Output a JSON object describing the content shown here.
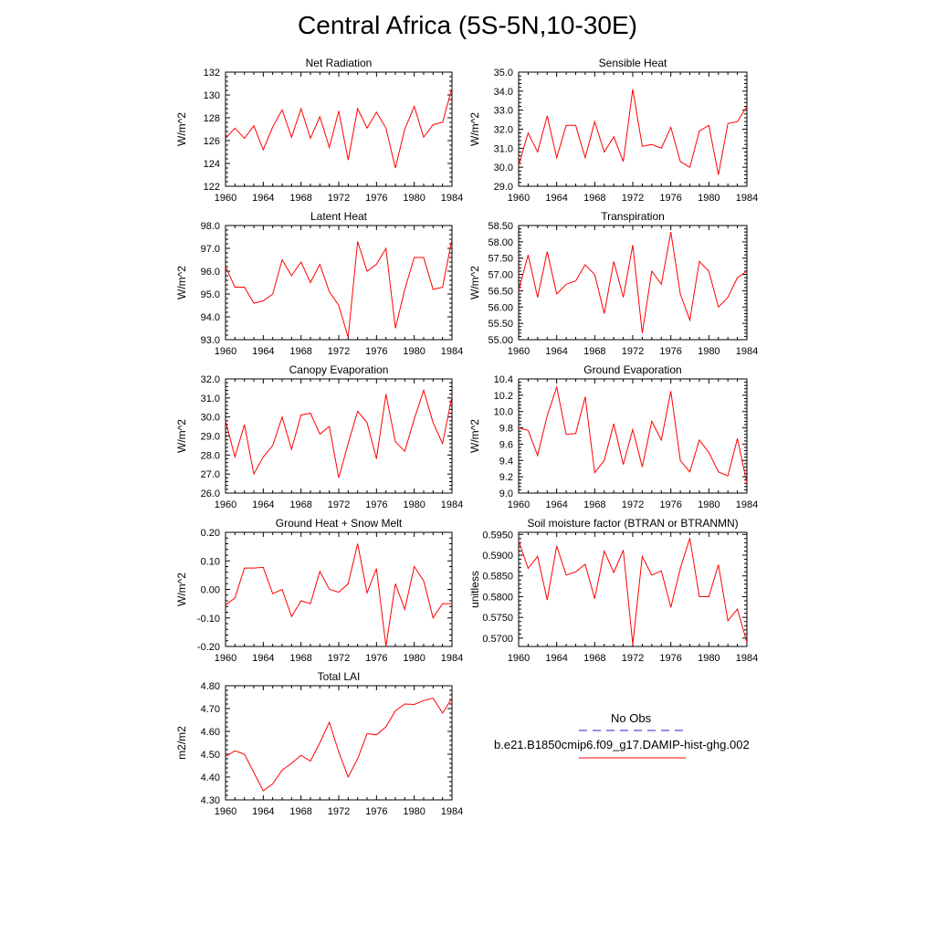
{
  "title": "Central Africa (5S-5N,10-30E)",
  "x_ticks": [
    1960,
    1964,
    1968,
    1972,
    1976,
    1980,
    1984
  ],
  "legend": {
    "obs_label": "No Obs",
    "obs_color": "#2222cc",
    "model_label": "b.e21.B1850cmip6.f09_g17.DAMIP-hist-ghg.002",
    "model_color": "#ff0000"
  },
  "chart_data": [
    {
      "type": "line",
      "title": "Net Radiation",
      "ylabel": "W/m^2",
      "ylim": [
        122,
        132
      ],
      "yticks": [
        "122",
        "124",
        "126",
        "128",
        "130",
        "132"
      ],
      "x": [
        1960,
        1961,
        1962,
        1963,
        1964,
        1965,
        1966,
        1967,
        1968,
        1969,
        1970,
        1971,
        1972,
        1973,
        1974,
        1975,
        1976,
        1977,
        1978,
        1979,
        1980,
        1981,
        1982,
        1983,
        1984
      ],
      "series": [
        {
          "values": [
            126.2,
            127.1,
            126.2,
            127.3,
            125.2,
            127.2,
            128.7,
            126.3,
            128.8,
            126.2,
            128.1,
            125.4,
            128.6,
            124.3,
            128.8,
            127.1,
            128.5,
            127.1,
            123.6,
            127.0,
            129.0,
            126.3,
            127.4,
            127.6,
            130.6
          ]
        }
      ]
    },
    {
      "type": "line",
      "title": "Sensible Heat",
      "ylabel": "W/m^2",
      "ylim": [
        29.0,
        35.0
      ],
      "yticks": [
        "29.0",
        "30.0",
        "31.0",
        "32.0",
        "33.0",
        "34.0",
        "35.0"
      ],
      "x": [
        1960,
        1961,
        1962,
        1963,
        1964,
        1965,
        1966,
        1967,
        1968,
        1969,
        1970,
        1971,
        1972,
        1973,
        1974,
        1975,
        1976,
        1977,
        1978,
        1979,
        1980,
        1981,
        1982,
        1983,
        1984
      ],
      "series": [
        {
          "values": [
            30.1,
            31.8,
            30.8,
            32.7,
            30.5,
            32.2,
            32.2,
            30.5,
            32.4,
            30.8,
            31.6,
            30.3,
            34.1,
            31.1,
            31.2,
            31.0,
            32.1,
            30.3,
            30.0,
            31.9,
            32.2,
            29.6,
            32.3,
            32.4,
            33.2
          ]
        }
      ]
    },
    {
      "type": "line",
      "title": "Latent Heat",
      "ylabel": "W/m^2",
      "ylim": [
        93.0,
        98.0
      ],
      "yticks": [
        "93.0",
        "94.0",
        "95.0",
        "96.0",
        "97.0",
        "98.0"
      ],
      "x": [
        1960,
        1961,
        1962,
        1963,
        1964,
        1965,
        1966,
        1967,
        1968,
        1969,
        1970,
        1971,
        1972,
        1973,
        1974,
        1975,
        1976,
        1977,
        1978,
        1979,
        1980,
        1981,
        1982,
        1983,
        1984
      ],
      "series": [
        {
          "values": [
            96.2,
            95.3,
            95.3,
            94.6,
            94.7,
            95.0,
            96.5,
            95.8,
            96.4,
            95.5,
            96.3,
            95.1,
            94.5,
            93.1,
            97.3,
            96.0,
            96.3,
            97.0,
            93.5,
            95.2,
            96.6,
            96.6,
            95.2,
            95.3,
            97.4
          ]
        }
      ]
    },
    {
      "type": "line",
      "title": "Transpiration",
      "ylabel": "W/m^2",
      "ylim": [
        55.0,
        58.5
      ],
      "yticks": [
        "55.00",
        "55.50",
        "56.00",
        "56.50",
        "57.00",
        "57.50",
        "58.00",
        "58.50"
      ],
      "x": [
        1960,
        1961,
        1962,
        1963,
        1964,
        1965,
        1966,
        1967,
        1968,
        1969,
        1970,
        1971,
        1972,
        1973,
        1974,
        1975,
        1976,
        1977,
        1978,
        1979,
        1980,
        1981,
        1982,
        1983,
        1984
      ],
      "series": [
        {
          "values": [
            56.5,
            57.6,
            56.3,
            57.7,
            56.4,
            56.7,
            56.8,
            57.3,
            57.0,
            55.8,
            57.4,
            56.3,
            57.9,
            55.2,
            57.1,
            56.7,
            58.3,
            56.4,
            55.6,
            57.4,
            57.1,
            56.0,
            56.3,
            56.9,
            57.1
          ]
        }
      ]
    },
    {
      "type": "line",
      "title": "Canopy Evaporation",
      "ylabel": "W/m^2",
      "ylim": [
        26.0,
        32.0
      ],
      "yticks": [
        "26.0",
        "27.0",
        "28.0",
        "29.0",
        "30.0",
        "31.0",
        "32.0"
      ],
      "x": [
        1960,
        1961,
        1962,
        1963,
        1964,
        1965,
        1966,
        1967,
        1968,
        1969,
        1970,
        1971,
        1972,
        1973,
        1974,
        1975,
        1976,
        1977,
        1978,
        1979,
        1980,
        1981,
        1982,
        1983,
        1984
      ],
      "series": [
        {
          "values": [
            29.8,
            27.9,
            29.6,
            27.0,
            27.9,
            28.5,
            30.0,
            28.3,
            30.1,
            30.2,
            29.1,
            29.5,
            26.8,
            28.6,
            30.3,
            29.7,
            27.8,
            31.2,
            28.7,
            28.2,
            29.9,
            31.4,
            29.7,
            28.6,
            31.1
          ]
        }
      ]
    },
    {
      "type": "line",
      "title": "Ground Evaporation",
      "ylabel": "W/m^2",
      "ylim": [
        9.0,
        10.4
      ],
      "yticks": [
        "9.0",
        "9.2",
        "9.4",
        "9.6",
        "9.8",
        "10.0",
        "10.2",
        "10.4"
      ],
      "x": [
        1960,
        1961,
        1962,
        1963,
        1964,
        1965,
        1966,
        1967,
        1968,
        1969,
        1970,
        1971,
        1972,
        1973,
        1974,
        1975,
        1976,
        1977,
        1978,
        1979,
        1980,
        1981,
        1982,
        1983,
        1984
      ],
      "series": [
        {
          "values": [
            9.8,
            9.77,
            9.46,
            9.95,
            10.3,
            9.72,
            9.73,
            10.18,
            9.25,
            9.4,
            9.85,
            9.35,
            9.78,
            9.32,
            9.88,
            9.65,
            10.25,
            9.4,
            9.26,
            9.65,
            9.5,
            9.26,
            9.21,
            9.67,
            9.12
          ]
        }
      ]
    },
    {
      "type": "line",
      "title": "Ground Heat + Snow Melt",
      "ylabel": "W/m^2",
      "ylim": [
        -0.2,
        0.2
      ],
      "yticks": [
        "-0.20",
        "-0.10",
        "0.00",
        "0.10",
        "0.20"
      ],
      "x": [
        1960,
        1961,
        1962,
        1963,
        1964,
        1965,
        1966,
        1967,
        1968,
        1969,
        1970,
        1971,
        1972,
        1973,
        1974,
        1975,
        1976,
        1977,
        1978,
        1979,
        1980,
        1981,
        1982,
        1983,
        1984
      ],
      "series": [
        {
          "values": [
            -0.055,
            -0.03,
            0.075,
            0.075,
            0.077,
            -0.015,
            0.0,
            -0.095,
            -0.04,
            -0.05,
            0.063,
            0.0,
            -0.01,
            0.02,
            0.16,
            -0.012,
            0.073,
            -0.2,
            0.02,
            -0.07,
            0.08,
            0.03,
            -0.1,
            -0.05,
            -0.05
          ]
        }
      ]
    },
    {
      "type": "line",
      "title": "Soil moisture factor (BTRAN or BTRANMN)",
      "ylabel": "unitless",
      "ylim": [
        0.568,
        0.5955
      ],
      "yticks": [
        "0.5700",
        "0.5750",
        "0.5800",
        "0.5850",
        "0.5900",
        "0.5950"
      ],
      "x": [
        1960,
        1961,
        1962,
        1963,
        1964,
        1965,
        1966,
        1967,
        1968,
        1969,
        1970,
        1971,
        1972,
        1973,
        1974,
        1975,
        1976,
        1977,
        1978,
        1979,
        1980,
        1981,
        1982,
        1983,
        1984
      ],
      "series": [
        {
          "values": [
            0.5935,
            0.5868,
            0.5897,
            0.5792,
            0.5922,
            0.5852,
            0.586,
            0.5878,
            0.5795,
            0.591,
            0.5858,
            0.5912,
            0.5685,
            0.5897,
            0.5852,
            0.5862,
            0.5774,
            0.5868,
            0.5941,
            0.58,
            0.58,
            0.5877,
            0.5742,
            0.577,
            0.569
          ]
        }
      ]
    },
    {
      "type": "line",
      "title": "Total LAI",
      "ylabel": "m2/m2",
      "ylim": [
        4.3,
        4.8
      ],
      "yticks": [
        "4.30",
        "4.40",
        "4.50",
        "4.60",
        "4.70",
        "4.80"
      ],
      "x": [
        1960,
        1961,
        1962,
        1963,
        1964,
        1965,
        1966,
        1967,
        1968,
        1969,
        1970,
        1971,
        1972,
        1973,
        1974,
        1975,
        1976,
        1977,
        1978,
        1979,
        1980,
        1981,
        1982,
        1983,
        1984
      ],
      "series": [
        {
          "values": [
            4.49,
            4.515,
            4.5,
            4.42,
            4.34,
            4.37,
            4.43,
            4.46,
            4.495,
            4.47,
            4.55,
            4.64,
            4.51,
            4.4,
            4.48,
            4.59,
            4.585,
            4.62,
            4.69,
            4.72,
            4.718,
            4.735,
            4.745,
            4.68,
            4.745
          ]
        }
      ]
    }
  ]
}
